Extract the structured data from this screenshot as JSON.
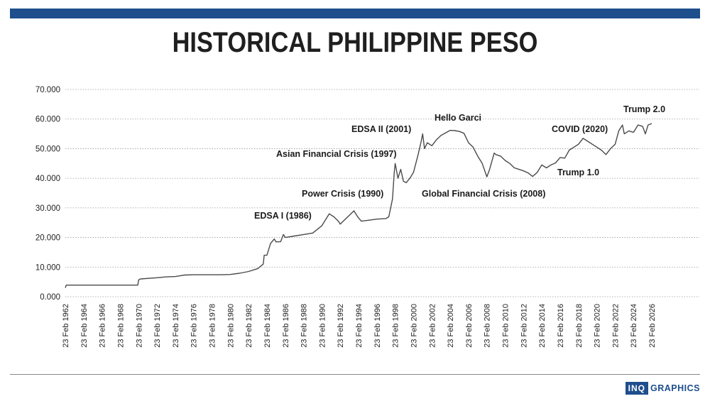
{
  "header": {
    "title": "HISTORICAL PHILIPPINE PESO"
  },
  "brand": {
    "box_label": "INQ",
    "text_label": "GRAPHICS",
    "color": "#1e4e8c"
  },
  "colors": {
    "accent": "#1e4e8c",
    "line": "#4a4a4a",
    "grid": "#9a9a9a"
  },
  "chart_data": {
    "type": "line",
    "title": "HISTORICAL PHILIPPINE PESO",
    "xlabel": "",
    "ylabel": "",
    "ylim": [
      0,
      70
    ],
    "xlim": [
      1962,
      2026.5
    ],
    "grid": "horizontal-dotted",
    "legend": "none",
    "y_ticks": [
      {
        "value": 0,
        "label": "0.000"
      },
      {
        "value": 10,
        "label": "10.000"
      },
      {
        "value": 20,
        "label": "20.000"
      },
      {
        "value": 30,
        "label": "30.000"
      },
      {
        "value": 40,
        "label": "40.000"
      },
      {
        "value": 50,
        "label": "50.000"
      },
      {
        "value": 60,
        "label": "60.000"
      },
      {
        "value": 70,
        "label": "70.000"
      }
    ],
    "x_ticks": [
      {
        "value": 1962,
        "label": "23 Feb 1962"
      },
      {
        "value": 1964,
        "label": "23 Feb 1964"
      },
      {
        "value": 1966,
        "label": "23 Feb 1966"
      },
      {
        "value": 1968,
        "label": "23 Feb 1968"
      },
      {
        "value": 1970,
        "label": "23 Feb 1970"
      },
      {
        "value": 1972,
        "label": "23 Feb 1972"
      },
      {
        "value": 1974,
        "label": "23 Feb 1974"
      },
      {
        "value": 1976,
        "label": "23 Feb 1976"
      },
      {
        "value": 1978,
        "label": "23 Feb 1978"
      },
      {
        "value": 1980,
        "label": "23 Feb 1980"
      },
      {
        "value": 1982,
        "label": "23 Feb 1982"
      },
      {
        "value": 1984,
        "label": "23 Feb 1984"
      },
      {
        "value": 1986,
        "label": "23 Feb 1986"
      },
      {
        "value": 1988,
        "label": "23 Feb 1988"
      },
      {
        "value": 1990,
        "label": "23 Feb 1990"
      },
      {
        "value": 1992,
        "label": "23 Feb 1992"
      },
      {
        "value": 1994,
        "label": "23 Feb 1994"
      },
      {
        "value": 1996,
        "label": "23 Feb 1996"
      },
      {
        "value": 1998,
        "label": "23 Feb 1998"
      },
      {
        "value": 2000,
        "label": "23 Feb 2000"
      },
      {
        "value": 2002,
        "label": "23 Feb 2002"
      },
      {
        "value": 2004,
        "label": "23 Feb 2004"
      },
      {
        "value": 2006,
        "label": "23 Feb 2006"
      },
      {
        "value": 2008,
        "label": "23 Feb 2008"
      },
      {
        "value": 2010,
        "label": "23 Feb 2010"
      },
      {
        "value": 2012,
        "label": "23 Feb 2012"
      },
      {
        "value": 2014,
        "label": "23 Feb 2014"
      },
      {
        "value": 2016,
        "label": "23 Feb 2016"
      },
      {
        "value": 2018,
        "label": "23 Feb 2018"
      },
      {
        "value": 2020,
        "label": "23 Feb 2020"
      },
      {
        "value": 2022,
        "label": "23 Feb 2022"
      },
      {
        "value": 2024,
        "label": "23 Feb 2024"
      },
      {
        "value": 2026,
        "label": "23 Feb 2026"
      }
    ],
    "series": [
      {
        "values": [
          [
            1962.0,
            3.0
          ],
          [
            1962.1,
            3.9
          ],
          [
            1965.0,
            3.9
          ],
          [
            1969.9,
            3.9
          ],
          [
            1970.0,
            5.7
          ],
          [
            1970.2,
            6.0
          ],
          [
            1972.0,
            6.4
          ],
          [
            1973.0,
            6.7
          ],
          [
            1974.0,
            6.8
          ],
          [
            1975.0,
            7.3
          ],
          [
            1976.0,
            7.4
          ],
          [
            1977.0,
            7.4
          ],
          [
            1978.0,
            7.4
          ],
          [
            1979.0,
            7.4
          ],
          [
            1980.0,
            7.5
          ],
          [
            1981.0,
            7.9
          ],
          [
            1982.0,
            8.5
          ],
          [
            1983.0,
            9.5
          ],
          [
            1983.6,
            11.0
          ],
          [
            1983.7,
            14.0
          ],
          [
            1984.0,
            14.0
          ],
          [
            1984.4,
            18.0
          ],
          [
            1984.8,
            19.5
          ],
          [
            1985.0,
            18.5
          ],
          [
            1985.5,
            18.6
          ],
          [
            1985.8,
            21.0
          ],
          [
            1986.0,
            20.0
          ],
          [
            1987.0,
            20.5
          ],
          [
            1988.0,
            21.0
          ],
          [
            1989.0,
            21.5
          ],
          [
            1990.0,
            24.0
          ],
          [
            1990.5,
            26.5
          ],
          [
            1990.8,
            28.0
          ],
          [
            1991.3,
            27.0
          ],
          [
            1991.8,
            25.5
          ],
          [
            1992.0,
            24.5
          ],
          [
            1992.5,
            26.0
          ],
          [
            1993.0,
            27.5
          ],
          [
            1993.5,
            29.0
          ],
          [
            1993.9,
            27.0
          ],
          [
            1994.3,
            25.5
          ],
          [
            1995.0,
            25.8
          ],
          [
            1996.0,
            26.2
          ],
          [
            1997.0,
            26.4
          ],
          [
            1997.3,
            27.0
          ],
          [
            1997.7,
            33.0
          ],
          [
            1997.9,
            42.0
          ],
          [
            1998.0,
            45.0
          ],
          [
            1998.3,
            40.0
          ],
          [
            1998.6,
            43.0
          ],
          [
            1998.9,
            39.0
          ],
          [
            1999.2,
            38.5
          ],
          [
            1999.6,
            40.0
          ],
          [
            2000.0,
            42.0
          ],
          [
            2000.5,
            48.0
          ],
          [
            2000.8,
            52.0
          ],
          [
            2001.0,
            55.0
          ],
          [
            2001.2,
            50.0
          ],
          [
            2001.5,
            52.0
          ],
          [
            2002.0,
            51.0
          ],
          [
            2002.5,
            53.0
          ],
          [
            2003.0,
            54.5
          ],
          [
            2004.0,
            56.2
          ],
          [
            2004.5,
            56.1
          ],
          [
            2005.0,
            55.8
          ],
          [
            2005.5,
            55.2
          ],
          [
            2006.0,
            52.0
          ],
          [
            2006.5,
            50.5
          ],
          [
            2007.0,
            47.5
          ],
          [
            2007.5,
            45.0
          ],
          [
            2008.0,
            40.5
          ],
          [
            2008.3,
            43.0
          ],
          [
            2008.8,
            48.5
          ],
          [
            2009.0,
            48.0
          ],
          [
            2009.5,
            47.5
          ],
          [
            2010.0,
            46.0
          ],
          [
            2010.5,
            45.0
          ],
          [
            2011.0,
            43.5
          ],
          [
            2011.5,
            43.0
          ],
          [
            2012.0,
            42.5
          ],
          [
            2012.5,
            41.8
          ],
          [
            2013.0,
            40.6
          ],
          [
            2013.5,
            42.0
          ],
          [
            2014.0,
            44.5
          ],
          [
            2014.5,
            43.5
          ],
          [
            2015.0,
            44.5
          ],
          [
            2015.5,
            45.2
          ],
          [
            2016.0,
            47.0
          ],
          [
            2016.5,
            46.8
          ],
          [
            2017.0,
            49.5
          ],
          [
            2017.5,
            50.5
          ],
          [
            2018.0,
            51.5
          ],
          [
            2018.5,
            53.5
          ],
          [
            2019.0,
            52.5
          ],
          [
            2019.5,
            51.5
          ],
          [
            2020.0,
            50.5
          ],
          [
            2020.5,
            49.5
          ],
          [
            2021.0,
            48.0
          ],
          [
            2021.5,
            50.0
          ],
          [
            2022.0,
            51.5
          ],
          [
            2022.4,
            56.0
          ],
          [
            2022.8,
            58.0
          ],
          [
            2023.0,
            55.0
          ],
          [
            2023.5,
            56.0
          ],
          [
            2024.0,
            55.5
          ],
          [
            2024.5,
            58.0
          ],
          [
            2025.0,
            57.5
          ],
          [
            2025.3,
            55.0
          ],
          [
            2025.6,
            58.0
          ],
          [
            2026.0,
            58.5
          ]
        ]
      }
    ],
    "annotations": [
      {
        "text": "Trump 2.0"
      },
      {
        "text": "Hello Garci"
      },
      {
        "text": "COVID (2020)"
      },
      {
        "text": "EDSA II (2001)"
      },
      {
        "text": "Asian Financial Crisis (1997)"
      },
      {
        "text": "Trump 1.0"
      },
      {
        "text": "Power Crisis (1990)"
      },
      {
        "text": "Global Financial Crisis (2008)"
      },
      {
        "text": "EDSA I (1986)"
      }
    ]
  }
}
